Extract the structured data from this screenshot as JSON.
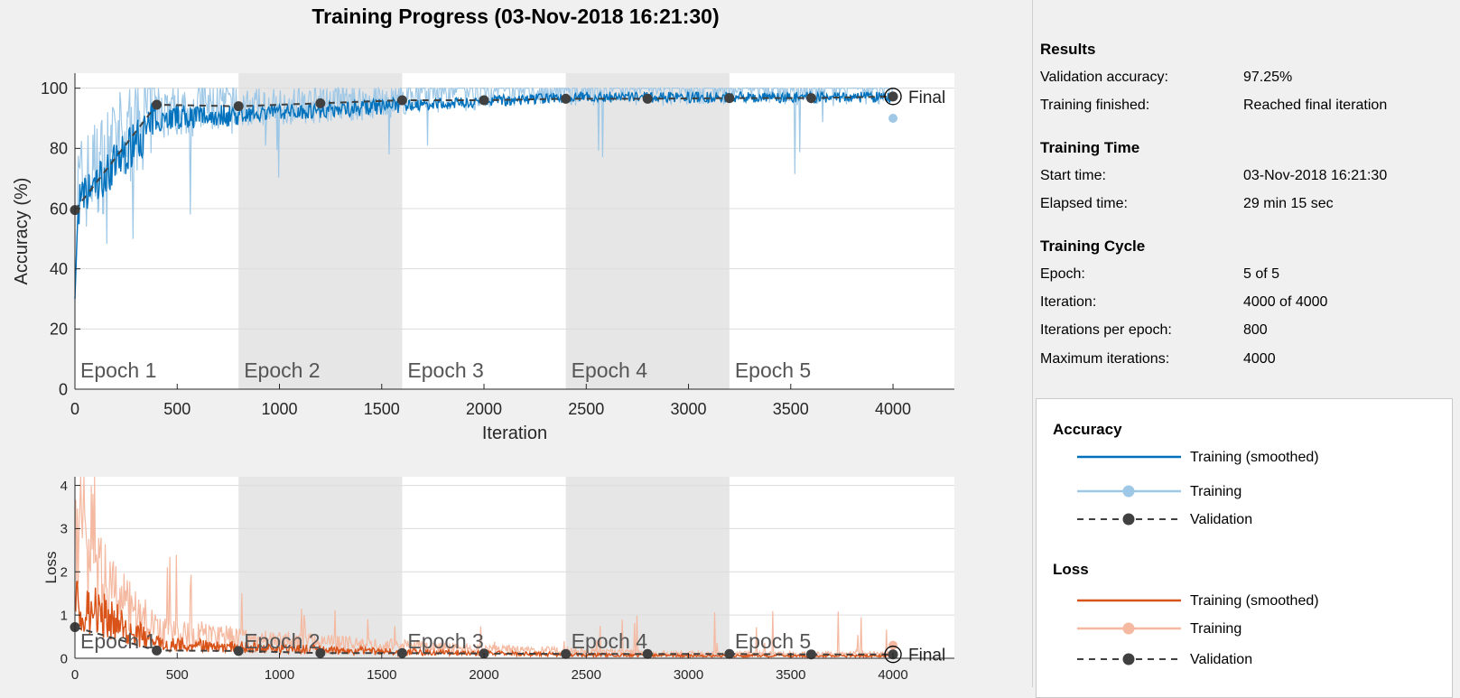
{
  "title": "Training Progress (03-Nov-2018 16:21:30)",
  "chart_data": [
    {
      "type": "line",
      "name": "accuracy",
      "ylabel": "Accuracy (%)",
      "xlabel": "Iteration",
      "xlim": [
        0,
        4300
      ],
      "ylim": [
        0,
        105
      ],
      "xticks": [
        0,
        500,
        1000,
        1500,
        2000,
        2500,
        3000,
        3500,
        4000
      ],
      "yticks": [
        0,
        20,
        40,
        60,
        80,
        100
      ],
      "epochs": [
        "Epoch 1",
        "Epoch 2",
        "Epoch 3",
        "Epoch 4",
        "Epoch 5"
      ],
      "epoch_boundaries": [
        0,
        800,
        1600,
        2400,
        3200,
        4000
      ],
      "shaded_epochs": [
        2,
        4
      ],
      "validation": {
        "x": [
          0,
          400,
          800,
          1200,
          1600,
          2000,
          2400,
          2800,
          3200,
          3600,
          4000
        ],
        "y": [
          59.5,
          94.5,
          94.0,
          95.0,
          96.0,
          96.0,
          96.5,
          96.5,
          96.7,
          96.7,
          97.25
        ]
      },
      "final_training_value": 90,
      "final_label": "Final",
      "training_range_note": "noisy between 50 and 100"
    },
    {
      "type": "line",
      "name": "loss",
      "ylabel": "Loss",
      "xlabel": "",
      "xlim": [
        0,
        4300
      ],
      "ylim": [
        0,
        4.2
      ],
      "xticks": [
        0,
        500,
        1000,
        1500,
        2000,
        2500,
        3000,
        3500,
        4000
      ],
      "yticks": [
        0,
        1,
        2,
        3,
        4
      ],
      "epochs": [
        "Epoch 1",
        "Epoch 2",
        "Epoch 3",
        "Epoch 4",
        "Epoch 5"
      ],
      "epoch_boundaries": [
        0,
        800,
        1600,
        2400,
        3200,
        4000
      ],
      "shaded_epochs": [
        2,
        4
      ],
      "validation": {
        "x": [
          0,
          400,
          800,
          1200,
          1600,
          2000,
          2400,
          2800,
          3200,
          3600,
          4000
        ],
        "y": [
          0.72,
          0.18,
          0.17,
          0.12,
          0.12,
          0.11,
          0.1,
          0.1,
          0.1,
          0.09,
          0.09
        ]
      },
      "final_training_value": 0.3,
      "final_label": "Final"
    }
  ],
  "info": {
    "results_header": "Results",
    "val_acc_label": "Validation accuracy:",
    "val_acc_value": "97.25%",
    "finished_label": "Training finished:",
    "finished_value": "Reached final iteration",
    "time_header": "Training Time",
    "start_label": "Start time:",
    "start_value": "03-Nov-2018 16:21:30",
    "elapsed_label": "Elapsed time:",
    "elapsed_value": "29 min 15 sec",
    "cycle_header": "Training Cycle",
    "epoch_label": "Epoch:",
    "epoch_value": "5 of 5",
    "iteration_label": "Iteration:",
    "iteration_value": "4000 of 4000",
    "ipe_label": "Iterations per epoch:",
    "ipe_value": "800",
    "max_label": "Maximum iterations:",
    "max_value": "4000"
  },
  "legend": {
    "acc_header": "Accuracy",
    "acc_smoothed": "Training (smoothed)",
    "acc_training": "Training",
    "acc_validation": "Validation",
    "loss_header": "Loss",
    "loss_smoothed": "Training (smoothed)",
    "loss_training": "Training",
    "loss_validation": "Validation"
  },
  "colors": {
    "acc_smoothed": "#0072bd",
    "acc_raw": "#9fc8e6",
    "loss_smoothed": "#d95319",
    "loss_raw": "#f4b9a0",
    "validation": "#404040",
    "shade": "#e6e6e6"
  }
}
